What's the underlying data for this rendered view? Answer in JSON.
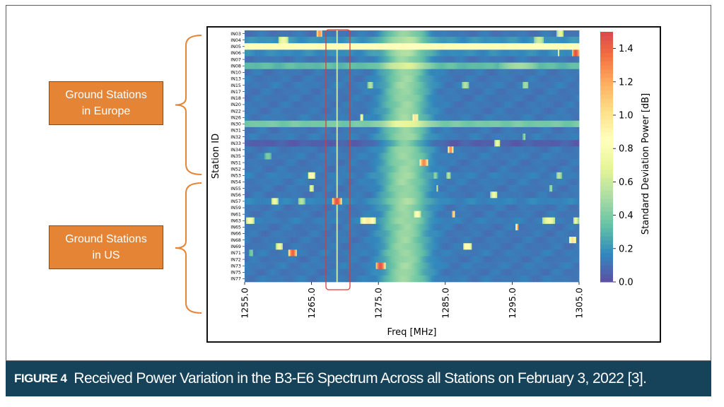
{
  "figure": {
    "label": "FIGURE 4",
    "caption": "Received Power Variation in the B3-E6 Spectrum Across all Stations on February 3, 2022 [3]."
  },
  "annotations": {
    "europe_lines": [
      "Ground Stations",
      "in Europe"
    ],
    "us_lines": [
      "Ground Stations",
      "in US"
    ],
    "highlight_color": "#e03a2f",
    "box_color": "#e58435",
    "bracket_color": "#e58435"
  },
  "chart_data": {
    "type": "heatmap",
    "xlabel": "Freq [MHz]",
    "ylabel": "Station ID",
    "colorbar_label": "Standard Deviation Power [dB]",
    "colormap": "Spectral_r",
    "xlim": [
      1255.0,
      1305.0
    ],
    "xticks": [
      "1255.0",
      "1265.0",
      "1275.0",
      "1285.0",
      "1295.0",
      "1305.0"
    ],
    "zlim": [
      0.0,
      1.5
    ],
    "zticks": [
      "0.0",
      "0.2",
      "0.4",
      "0.6",
      "0.8",
      "1.0",
      "1.2",
      "1.4"
    ],
    "stations": [
      "IN03",
      "IN04",
      "IN05",
      "IN06",
      "IN07",
      "IN08",
      "IN10",
      "IN13",
      "IN15",
      "IN17",
      "IN18",
      "IN20",
      "IN22",
      "IN26",
      "IN30",
      "IN31",
      "IN32",
      "IN33",
      "IN34",
      "IN35",
      "IN51",
      "IN52",
      "IN53",
      "IN54",
      "IN55",
      "IN56",
      "IN57",
      "IN59",
      "IN61",
      "IN63",
      "IN65",
      "IN66",
      "IN68",
      "IN69",
      "IN71",
      "IN72",
      "IN73",
      "IN75",
      "IN77"
    ],
    "europe_stations": [
      "IN03",
      "IN53"
    ],
    "us_stations": [
      "IN54",
      "IN77"
    ],
    "base_levels": [
      0.12,
      0.2,
      0.85,
      0.18,
      0.12,
      0.32,
      0.12,
      0.12,
      0.13,
      0.12,
      0.12,
      0.12,
      0.12,
      0.13,
      0.38,
      0.12,
      0.13,
      0.05,
      0.12,
      0.13,
      0.12,
      0.12,
      0.14,
      0.13,
      0.12,
      0.12,
      0.16,
      0.12,
      0.12,
      0.14,
      0.12,
      0.12,
      0.12,
      0.12,
      0.13,
      0.12,
      0.13,
      0.12,
      0.13
    ],
    "broad_feature": {
      "center_mhz": 1279.0,
      "width_mhz": 4.5,
      "peak": 0.35
    },
    "hotspots": [
      {
        "station": "IN03",
        "freq": 1266.2,
        "width": 1.0,
        "value": 1.25
      },
      {
        "station": "IN03",
        "freq": 1302.2,
        "width": 1.0,
        "value": 0.7
      },
      {
        "station": "IN04",
        "freq": 1260.8,
        "width": 1.5,
        "value": 0.75
      },
      {
        "station": "IN04",
        "freq": 1299.0,
        "width": 1.5,
        "value": 0.6
      },
      {
        "station": "IN05",
        "freq": 1266.8,
        "width": 0.4,
        "value": 0.25
      },
      {
        "station": "IN05",
        "freq": 1273.5,
        "width": 0.4,
        "value": 0.3
      },
      {
        "station": "IN06",
        "freq": 1304.5,
        "width": 1.2,
        "value": 1.45
      },
      {
        "station": "IN06",
        "freq": 1302.0,
        "width": 0.3,
        "value": 0.7
      },
      {
        "station": "IN08",
        "freq": 1296.0,
        "width": 6.0,
        "value": 0.5
      },
      {
        "station": "IN15",
        "freq": 1273.8,
        "width": 0.8,
        "value": 0.55
      },
      {
        "station": "IN15",
        "freq": 1288.0,
        "width": 1.0,
        "value": 0.55
      },
      {
        "station": "IN15",
        "freq": 1297.0,
        "width": 1.0,
        "value": 0.5
      },
      {
        "station": "IN26",
        "freq": 1272.5,
        "width": 0.4,
        "value": 0.8
      },
      {
        "station": "IN26",
        "freq": 1280.5,
        "width": 0.8,
        "value": 1.0
      },
      {
        "station": "IN26",
        "freq": 1279.2,
        "width": 0.4,
        "value": 0.4
      },
      {
        "station": "IN32",
        "freq": 1296.8,
        "width": 0.3,
        "value": 0.5
      },
      {
        "station": "IN33",
        "freq": 1292.8,
        "width": 0.8,
        "value": 0.75
      },
      {
        "station": "IN34",
        "freq": 1285.8,
        "width": 0.7,
        "value": 1.3
      },
      {
        "station": "IN35",
        "freq": 1258.5,
        "width": 1.0,
        "value": 0.4
      },
      {
        "station": "IN51",
        "freq": 1281.8,
        "width": 1.2,
        "value": 1.3
      },
      {
        "station": "IN53",
        "freq": 1265.0,
        "width": 1.0,
        "value": 0.9
      },
      {
        "station": "IN53",
        "freq": 1283.5,
        "width": 0.6,
        "value": 0.45
      },
      {
        "station": "IN53",
        "freq": 1285.5,
        "width": 0.6,
        "value": 0.55
      },
      {
        "station": "IN53",
        "freq": 1302.0,
        "width": 0.8,
        "value": 0.55
      },
      {
        "station": "IN55",
        "freq": 1265.0,
        "width": 0.6,
        "value": 0.7
      },
      {
        "station": "IN55",
        "freq": 1283.8,
        "width": 0.4,
        "value": 0.6
      },
      {
        "station": "IN55",
        "freq": 1300.8,
        "width": 0.4,
        "value": 0.5
      },
      {
        "station": "IN56",
        "freq": 1292.3,
        "width": 1.0,
        "value": 0.75
      },
      {
        "station": "IN57",
        "freq": 1268.8,
        "width": 1.4,
        "value": 1.45
      },
      {
        "station": "IN57",
        "freq": 1259.5,
        "width": 1.0,
        "value": 0.75
      },
      {
        "station": "IN57",
        "freq": 1263.5,
        "width": 1.0,
        "value": 0.55
      },
      {
        "station": "IN61",
        "freq": 1280.8,
        "width": 1.0,
        "value": 0.85
      },
      {
        "station": "IN61",
        "freq": 1286.2,
        "width": 0.3,
        "value": 1.3
      },
      {
        "station": "IN63",
        "freq": 1255.8,
        "width": 1.2,
        "value": 0.8
      },
      {
        "station": "IN63",
        "freq": 1273.5,
        "width": 2.2,
        "value": 0.95
      },
      {
        "station": "IN63",
        "freq": 1300.5,
        "width": 2.0,
        "value": 0.75
      },
      {
        "station": "IN63",
        "freq": 1304.5,
        "width": 0.8,
        "value": 0.7
      },
      {
        "station": "IN65",
        "freq": 1295.8,
        "width": 0.4,
        "value": 1.2
      },
      {
        "station": "IN68",
        "freq": 1304.0,
        "width": 1.0,
        "value": 1.0
      },
      {
        "station": "IN69",
        "freq": 1260.2,
        "width": 1.0,
        "value": 0.75
      },
      {
        "station": "IN69",
        "freq": 1288.3,
        "width": 1.2,
        "value": 0.9
      },
      {
        "station": "IN71",
        "freq": 1262.2,
        "width": 1.2,
        "value": 1.4
      },
      {
        "station": "IN71",
        "freq": 1256.0,
        "width": 0.6,
        "value": 0.4
      },
      {
        "station": "IN73",
        "freq": 1275.3,
        "width": 1.4,
        "value": 1.45
      }
    ],
    "narrow_line": {
      "freq": 1268.8,
      "value": 0.6
    }
  }
}
